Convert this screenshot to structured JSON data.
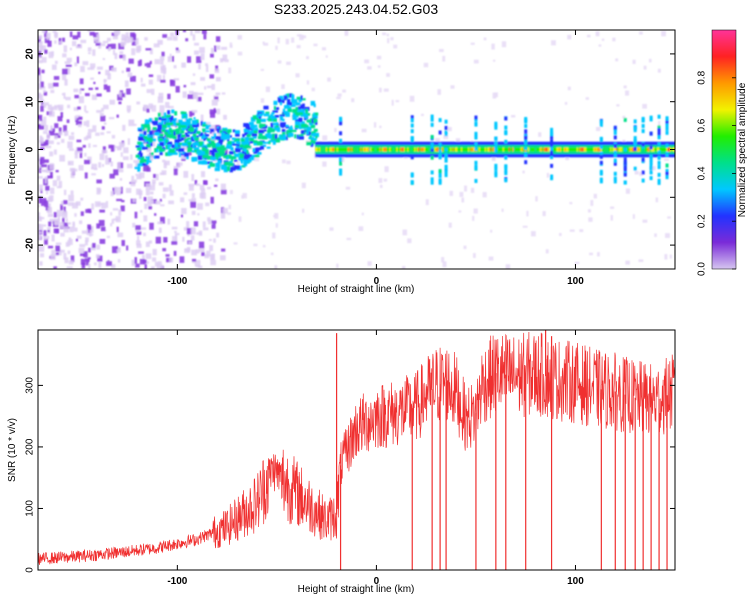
{
  "title": "S233.2025.243.04.52.G03",
  "chart_data": [
    {
      "type": "heatmap",
      "name": "spectrogram",
      "xlabel": "Height of straight line (km)",
      "ylabel": "Frequency (Hz)",
      "xlim": [
        -170,
        150
      ],
      "ylim": [
        -25,
        25
      ],
      "xticks": [
        -100,
        0,
        100
      ],
      "xtick_labels": [
        "-100",
        "0",
        "100"
      ],
      "yticks": [
        20,
        10,
        0,
        -10,
        -20
      ],
      "ytick_labels": [
        "20",
        "10",
        "0",
        "-10",
        "-20"
      ],
      "colorbar": {
        "label": "Normalized spectral amplitude",
        "range": [
          0.0,
          1.0
        ],
        "ticks": [
          0.0,
          0.2,
          0.4,
          0.6,
          0.8
        ],
        "tick_labels": [
          "0.0",
          "0.2",
          "0.4",
          "0.6",
          "0.8"
        ],
        "colormap": [
          "#d6c6f0",
          "#7a2bd8",
          "#2233ff",
          "#00c8ff",
          "#00e08a",
          "#22ee00",
          "#f2f200",
          "#ff9900",
          "#ff2222",
          "#ff3399"
        ]
      },
      "features": [
        {
          "label": "diffuse noise",
          "x_range": [
            -170,
            -75
          ],
          "freq_range": [
            -25,
            25
          ],
          "amplitude": 0.15
        },
        {
          "label": "wandering band",
          "x_range": [
            -120,
            -30
          ],
          "freq_center": [
            0,
            2,
            5,
            -1,
            3,
            4
          ],
          "amplitude": 0.35
        },
        {
          "label": "strong carrier line",
          "x_range": [
            -30,
            150
          ],
          "freq_center": 0,
          "amplitude": 0.9
        }
      ]
    },
    {
      "type": "line",
      "name": "snr",
      "xlabel": "Height of straight line (km)",
      "ylabel": "SNR (10 * v/v)",
      "xlim": [
        -170,
        150
      ],
      "ylim": [
        0,
        390
      ],
      "xticks": [
        -100,
        0,
        100
      ],
      "xtick_labels": [
        "-100",
        "0",
        "100"
      ],
      "yticks": [
        0,
        100,
        200,
        300
      ],
      "ytick_labels": [
        "0",
        "100",
        "200",
        "300"
      ],
      "color": "#f03030",
      "x": [
        -170,
        -150,
        -130,
        -110,
        -90,
        -75,
        -60,
        -52,
        -45,
        -35,
        -25,
        -20,
        -18,
        -10,
        0,
        10,
        20,
        25,
        30,
        35,
        40,
        45,
        50,
        53,
        60,
        70,
        80,
        90,
        100,
        110,
        120,
        130,
        140,
        150
      ],
      "y": [
        18,
        22,
        28,
        36,
        50,
        70,
        110,
        165,
        140,
        110,
        80,
        90,
        170,
        230,
        250,
        255,
        265,
        285,
        300,
        305,
        290,
        245,
        255,
        300,
        320,
        315,
        320,
        310,
        305,
        295,
        290,
        280,
        275,
        290
      ],
      "dropouts": [
        -18,
        18,
        28,
        32,
        35,
        50,
        60,
        65,
        75,
        88,
        113,
        120,
        125,
        130,
        134,
        138,
        142,
        146
      ]
    }
  ]
}
